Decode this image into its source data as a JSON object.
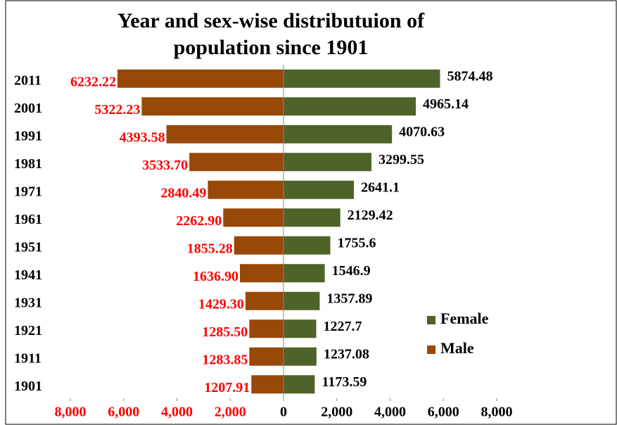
{
  "chart_data": {
    "type": "pyramid",
    "title": [
      "Year and sex-wise distributuion of",
      "population since 1901"
    ],
    "categories": [
      "2011",
      "2001",
      "1991",
      "1981",
      "1971",
      "1961",
      "1951",
      "1941",
      "1931",
      "1921",
      "1911",
      "1901"
    ],
    "series": [
      {
        "name": "Female",
        "color": "#4f6228",
        "label_color": "#000000",
        "values": [
          5874.48,
          4965.14,
          4070.63,
          3299.55,
          2641.1,
          2129.42,
          1755.6,
          1546.9,
          1357.89,
          1227.7,
          1237.08,
          1173.59
        ]
      },
      {
        "name": "Male",
        "color": "#984807",
        "label_color": "#ff0000",
        "values": [
          6232.22,
          5322.23,
          4393.58,
          3533.7,
          2840.49,
          2262.9,
          1855.28,
          1636.9,
          1429.3,
          1285.5,
          1283.85,
          1207.91
        ],
        "value_labels": [
          "6232.22",
          "5322.23",
          "4393.58",
          "3533.70",
          "2840.49",
          "2262.90",
          "1855.28",
          "1636.90",
          "1429.30",
          "1285.50",
          "1283.85",
          "1207.91"
        ]
      }
    ],
    "xlim": [
      -8000,
      8000
    ],
    "xticks": [
      {
        "value": -8000,
        "label": "8,000"
      },
      {
        "value": -6000,
        "label": "6,000"
      },
      {
        "value": -4000,
        "label": "4,000"
      },
      {
        "value": -2000,
        "label": "2,000"
      },
      0,
      {
        "value": 2000,
        "label": "2,000"
      },
      {
        "value": 4000,
        "label": "4,000"
      },
      {
        "value": 6000,
        "label": "6,000"
      },
      {
        "value": 8000,
        "label": "8,000"
      }
    ],
    "legend": "lower right"
  }
}
